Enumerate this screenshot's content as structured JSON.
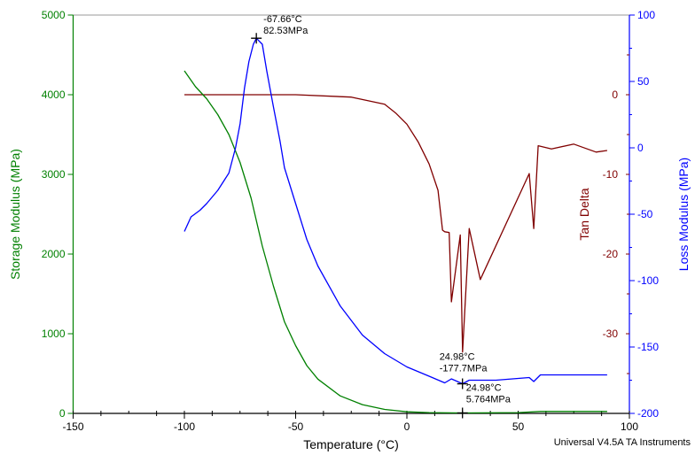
{
  "chart_data": {
    "type": "line",
    "xlabel": "Temperature (°C)",
    "xlim": [
      -150,
      100
    ],
    "xticks": [
      -150,
      -100,
      -50,
      0,
      50,
      100
    ],
    "footer": "Universal V4.5A TA Instruments",
    "colors": {
      "storage": "#008000",
      "loss": "#0000ff",
      "tan": "#800000"
    },
    "axes": {
      "left": {
        "label": "Storage Modulus (MPa)",
        "lim": [
          0,
          5000
        ],
        "ticks": [
          0,
          1000,
          2000,
          3000,
          4000,
          5000
        ]
      },
      "right_loss": {
        "label": "Loss Modulus (MPa)",
        "lim": [
          -200,
          100
        ],
        "ticks": [
          -200,
          -150,
          -100,
          -50,
          0,
          50,
          100
        ]
      },
      "right_tan": {
        "label": "Tan Delta",
        "lim": [
          -40,
          10
        ],
        "ticks": [
          -30,
          -20,
          -10,
          0
        ]
      }
    },
    "series": [
      {
        "name": "Storage Modulus",
        "axis": "left",
        "color": "#008000",
        "x": [
          -100,
          -95,
          -90,
          -85,
          -80,
          -75,
          -70,
          -65,
          -60,
          -55,
          -50,
          -45,
          -40,
          -30,
          -20,
          -10,
          0,
          10,
          25,
          50,
          60,
          90
        ],
        "y": [
          4300,
          4100,
          3950,
          3750,
          3500,
          3150,
          2700,
          2100,
          1600,
          1150,
          850,
          600,
          430,
          220,
          110,
          50,
          20,
          10,
          5.8,
          10,
          25,
          25
        ]
      },
      {
        "name": "Loss Modulus",
        "axis": "right_loss",
        "color": "#0000ff",
        "x": [
          -100,
          -97,
          -93,
          -90,
          -85,
          -80,
          -77,
          -75,
          -73,
          -71,
          -69,
          -67.66,
          -65,
          -63,
          -60,
          -57,
          -55,
          -50,
          -45,
          -40,
          -30,
          -20,
          -10,
          0,
          10,
          17,
          20,
          25,
          28,
          40,
          55,
          57,
          60,
          90
        ],
        "y": [
          -63,
          -52,
          -47,
          -42,
          -32,
          -19,
          0,
          18,
          45,
          65,
          78,
          82.53,
          78,
          58,
          31,
          5,
          -15,
          -42,
          -69,
          -89,
          -119,
          -141,
          -155,
          -165,
          -172,
          -177,
          -174,
          -177.7,
          -175,
          -175,
          -173,
          -176,
          -171,
          -171
        ]
      },
      {
        "name": "Tan Delta",
        "axis": "right_tan",
        "color": "#800000",
        "x": [
          -100,
          -50,
          -25,
          -10,
          -5,
          0,
          5,
          10,
          14,
          16,
          17,
          19,
          20,
          24,
          25,
          28,
          33,
          55,
          57,
          59,
          65,
          75,
          85,
          90
        ],
        "y": [
          0,
          0,
          -0.3,
          -1.2,
          -2.3,
          -3.7,
          -5.9,
          -8.7,
          -12,
          -17,
          -17.2,
          -17.3,
          -26,
          -17.6,
          -32.3,
          -16.8,
          -23.2,
          -9.9,
          -16.8,
          -6.4,
          -6.8,
          -6.2,
          -7.2,
          -7
        ]
      }
    ],
    "annotations": [
      {
        "series": "Loss Modulus",
        "x": -67.66,
        "y": 82.53,
        "line1": "-67.66°C",
        "line2": "82.53MPa"
      },
      {
        "series": "Loss Modulus",
        "x": 24.98,
        "y": -177.7,
        "line1": "24.98°C",
        "line2": "-177.7MPa"
      },
      {
        "series": "Storage Modulus",
        "x": 24.98,
        "y": 5.764,
        "line1": "24.98°C",
        "line2": "5.764MPa"
      }
    ]
  }
}
